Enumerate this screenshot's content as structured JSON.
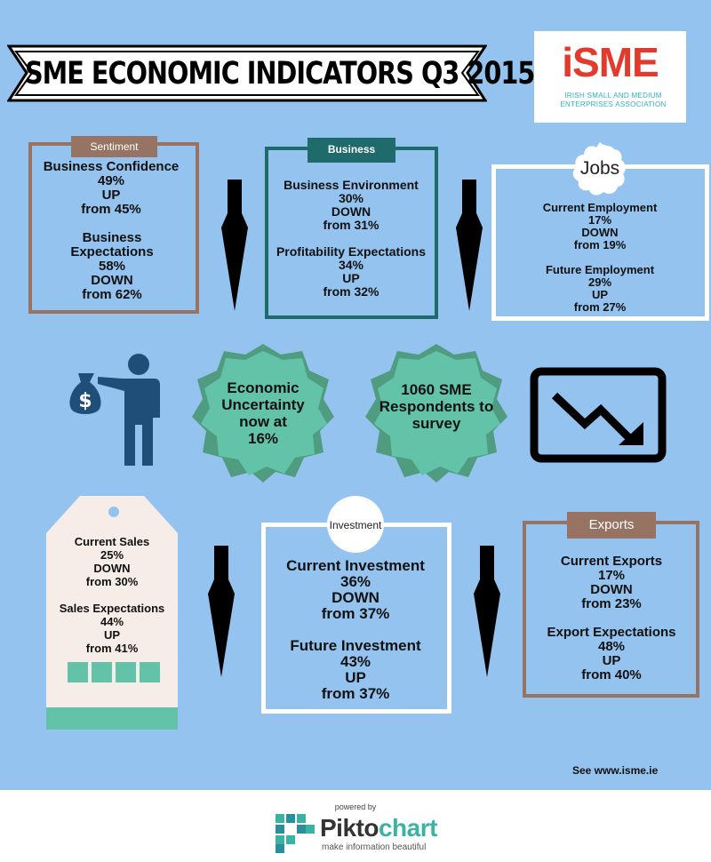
{
  "title": "SME ECONOMIC INDICATORS Q3 2015",
  "logo": {
    "word": "iSME",
    "subtitle": "IRISH SMALL AND MEDIUM ENTERPRISES ASSOCIATION"
  },
  "colors": {
    "background": "#93c3ee",
    "brown": "#977363",
    "teal_dark": "#1f6b6b",
    "teal_light": "#62c3a8",
    "brand_red": "#e23b2e"
  },
  "sentiment": {
    "tab": "Sentiment",
    "m1": {
      "name": "Business Confidence",
      "value": "49%",
      "dir": "UP",
      "prev": "from 45%"
    },
    "m2": {
      "name": "Business Expectations",
      "value": "58%",
      "dir": "DOWN",
      "prev": "from 62%"
    }
  },
  "business": {
    "tab": "Business",
    "m1": {
      "name": "Business Environment",
      "value": "30%",
      "dir": "DOWN",
      "prev": "from 31%"
    },
    "m2": {
      "name": "Profitability Expectations",
      "value": "34%",
      "dir": "UP",
      "prev": "from 32%"
    }
  },
  "jobs": {
    "tab": "Jobs",
    "m1": {
      "name": "Current Employment",
      "value": "17%",
      "dir": "DOWN",
      "prev": "from 19%"
    },
    "m2": {
      "name": "Future Employment",
      "value": "29%",
      "dir": "UP",
      "prev": "from 27%"
    }
  },
  "uncertainty": {
    "line1": "Economic",
    "line2": "Uncertainty",
    "line3": "now at",
    "line4": "16%"
  },
  "respondents": {
    "line1": "1060 SME",
    "line2": "Respondents to",
    "line3": "survey"
  },
  "sales": {
    "m1": {
      "name": "Current Sales",
      "value": "25%",
      "dir": "DOWN",
      "prev": "from 30%"
    },
    "m2": {
      "name": "Sales Expectations",
      "value": "44%",
      "dir": "UP",
      "prev": "from 41%"
    }
  },
  "investment": {
    "tab": "Investment",
    "m1": {
      "name": "Current Investment",
      "value": "36%",
      "dir": "DOWN",
      "prev": "from 37%"
    },
    "m2": {
      "name": "Future Investment",
      "value": "43%",
      "dir": "UP",
      "prev": "from 37%"
    }
  },
  "exports": {
    "tab": "Exports",
    "m1": {
      "name": "Current Exports",
      "value": "17%",
      "dir": "DOWN",
      "prev": "from 23%"
    },
    "m2": {
      "name": "Export Expectations",
      "value": "48%",
      "dir": "UP",
      "prev": "from 40%"
    }
  },
  "see": "See www.isme.ie",
  "footer": {
    "powered": "powered by",
    "brand_a": "Pikto",
    "brand_b": "chart",
    "tagline": "make information beautiful"
  }
}
